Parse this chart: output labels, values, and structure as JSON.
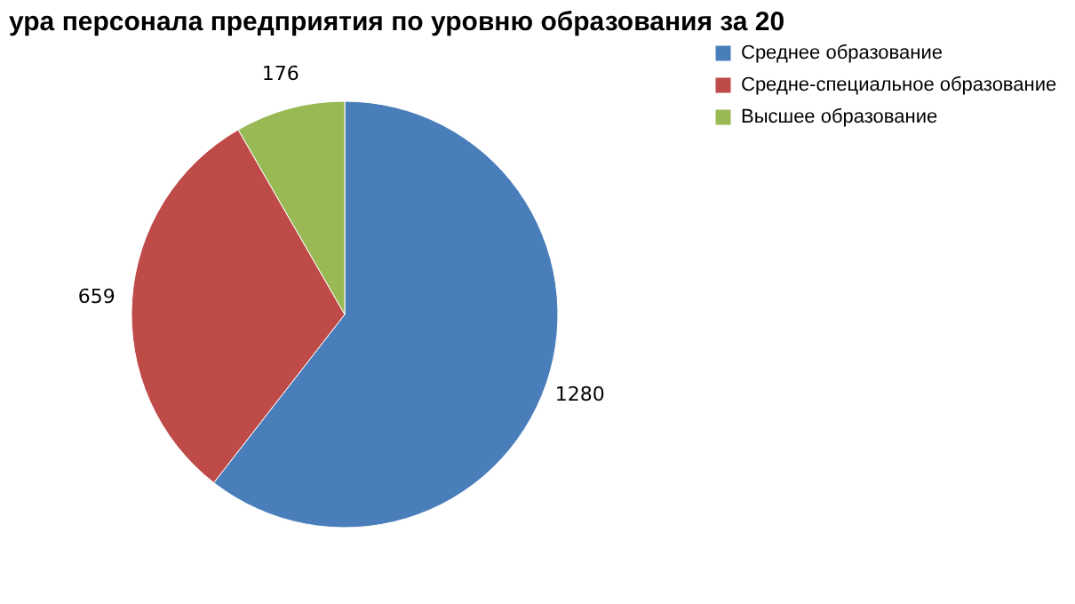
{
  "chart_data": {
    "type": "pie",
    "title": "ура персонала предприятия по уровню образования за 20",
    "categories": [
      "Среднее образование",
      "Средне-специальное образование",
      "Высшее образование"
    ],
    "values": [
      1280,
      659,
      176
    ],
    "colors": [
      "#4a7ebb",
      "#be4b48",
      "#98b954"
    ],
    "data_labels": true,
    "legend": "right"
  }
}
